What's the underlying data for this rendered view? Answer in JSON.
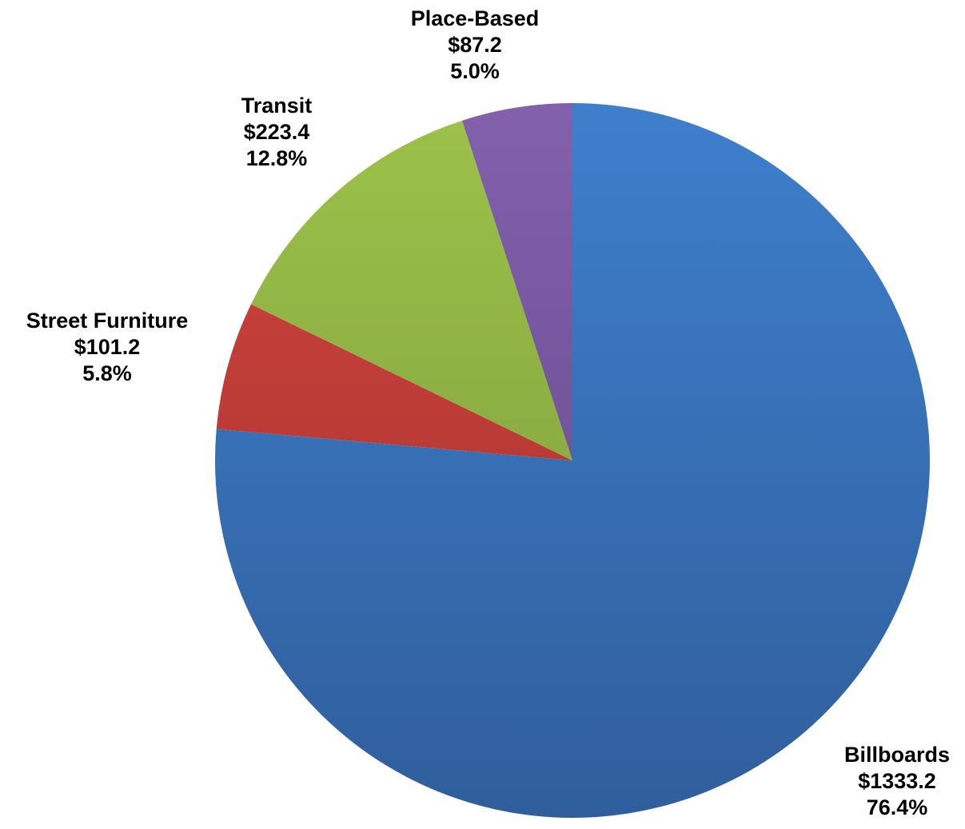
{
  "chart_data": {
    "type": "pie",
    "title": "",
    "start_angle_deg": 0,
    "direction": "clockwise",
    "slices": [
      {
        "name": "Billboards",
        "value": 1333.2,
        "value_label": "$1333.2",
        "percent": 76.4,
        "percent_label": "76.4%",
        "color_top": "#3E7FCC",
        "color_bottom": "#305E9C"
      },
      {
        "name": "Street Furniture",
        "value": 101.2,
        "value_label": "$101.2",
        "percent": 5.8,
        "percent_label": "5.8%",
        "color_top": "#D0463E",
        "color_bottom": "#A32E2C"
      },
      {
        "name": "Transit",
        "value": 223.4,
        "value_label": "$223.4",
        "percent": 12.8,
        "percent_label": "12.8%",
        "color_top": "#9DC24A",
        "color_bottom": "#78973A"
      },
      {
        "name": "Place-Based",
        "value": 87.2,
        "value_label": "$87.2",
        "percent": 5.0,
        "percent_label": "5.0%",
        "color_top": "#8360AC",
        "color_bottom": "#5E4887"
      }
    ],
    "legend": "none"
  }
}
